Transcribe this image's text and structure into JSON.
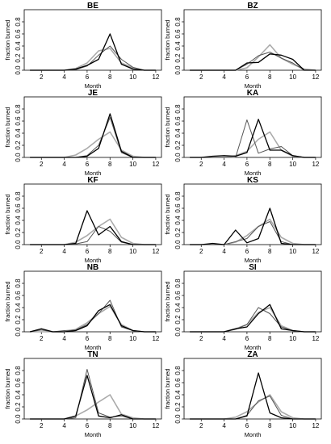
{
  "chart_data": [
    {
      "type": "line",
      "title": "BE",
      "xlabel": "Month",
      "ylabel": "fraction burned",
      "xlim": [
        0.5,
        12.5
      ],
      "ylim": [
        0,
        1
      ],
      "xticks": [
        2,
        4,
        6,
        8,
        10,
        12
      ],
      "yticks": [
        0.0,
        0.2,
        0.4,
        0.6,
        0.8
      ],
      "x": [
        1,
        2,
        3,
        4,
        5,
        6,
        7,
        8,
        9,
        10,
        11,
        12
      ],
      "series": [
        {
          "color": "#000000",
          "values": [
            0,
            0,
            0,
            0,
            0.02,
            0.08,
            0.18,
            0.6,
            0.1,
            0.02,
            0,
            0
          ]
        },
        {
          "color": "#555555",
          "values": [
            0,
            0,
            0,
            0,
            0.01,
            0.07,
            0.25,
            0.4,
            0.18,
            0.05,
            0,
            0
          ]
        },
        {
          "color": "#aaaaaa",
          "values": [
            0,
            0,
            0,
            0,
            0.03,
            0.12,
            0.32,
            0.36,
            0.12,
            0.04,
            0,
            0
          ]
        }
      ]
    },
    {
      "type": "line",
      "title": "BZ",
      "xlabel": "Month",
      "ylabel": "fraction burned",
      "xlim": [
        0.5,
        12.5
      ],
      "ylim": [
        0,
        1
      ],
      "xticks": [
        2,
        4,
        6,
        8,
        10,
        12
      ],
      "yticks": [
        0.0,
        0.2,
        0.4,
        0.6,
        0.8
      ],
      "x": [
        1,
        2,
        3,
        4,
        5,
        6,
        7,
        8,
        9,
        10,
        11,
        12
      ],
      "series": [
        {
          "color": "#000000",
          "values": [
            0,
            0,
            0,
            0,
            0,
            0.12,
            0.13,
            0.27,
            0.25,
            0.18,
            0,
            0
          ]
        },
        {
          "color": "#555555",
          "values": [
            0,
            0,
            0,
            0,
            0,
            0.1,
            0.24,
            0.3,
            0.2,
            0.12,
            0,
            0
          ]
        },
        {
          "color": "#aaaaaa",
          "values": [
            0,
            0,
            0,
            0,
            0,
            0.04,
            0.22,
            0.42,
            0.2,
            0.1,
            0.02,
            0
          ]
        }
      ]
    },
    {
      "type": "line",
      "title": "JE",
      "xlabel": "Month",
      "ylabel": "fraction burned",
      "xlim": [
        0.5,
        12.5
      ],
      "ylim": [
        0,
        1
      ],
      "xticks": [
        2,
        4,
        6,
        8,
        10,
        12
      ],
      "yticks": [
        0.0,
        0.2,
        0.4,
        0.6,
        0.8
      ],
      "x": [
        1,
        2,
        3,
        4,
        5,
        6,
        7,
        8,
        9,
        10,
        11,
        12
      ],
      "series": [
        {
          "color": "#000000",
          "values": [
            0,
            0,
            0,
            0,
            0,
            0.02,
            0.15,
            0.72,
            0.1,
            0,
            0,
            0
          ]
        },
        {
          "color": "#555555",
          "values": [
            0,
            0,
            0,
            0,
            0,
            0.03,
            0.2,
            0.66,
            0.08,
            0,
            0,
            0
          ]
        },
        {
          "color": "#aaaaaa",
          "values": [
            0,
            0,
            0,
            0,
            0.04,
            0.15,
            0.3,
            0.42,
            0.12,
            0.02,
            0,
            0
          ]
        }
      ]
    },
    {
      "type": "line",
      "title": "KA",
      "xlabel": "Month",
      "ylabel": "fraction burned",
      "xlim": [
        0.5,
        12.5
      ],
      "ylim": [
        0,
        1
      ],
      "xticks": [
        2,
        4,
        6,
        8,
        10,
        12
      ],
      "yticks": [
        0.0,
        0.2,
        0.4,
        0.6,
        0.8
      ],
      "x": [
        1,
        2,
        3,
        4,
        5,
        6,
        7,
        8,
        9,
        10,
        11,
        12
      ],
      "series": [
        {
          "color": "#000000",
          "values": [
            0,
            0,
            0.02,
            0.03,
            0.02,
            0.08,
            0.63,
            0.12,
            0.12,
            0.03,
            0,
            0
          ]
        },
        {
          "color": "#555555",
          "values": [
            0,
            0,
            0,
            0,
            0,
            0.62,
            0.07,
            0.14,
            0.18,
            0.03,
            0,
            0
          ]
        },
        {
          "color": "#aaaaaa",
          "values": [
            0,
            0,
            0,
            0,
            0.03,
            0.1,
            0.3,
            0.42,
            0.12,
            0.02,
            0,
            0
          ]
        }
      ]
    },
    {
      "type": "line",
      "title": "KF",
      "xlabel": "Month",
      "ylabel": "fraction burned",
      "xlim": [
        0.5,
        12.5
      ],
      "ylim": [
        0,
        1
      ],
      "xticks": [
        2,
        4,
        6,
        8,
        10,
        12
      ],
      "yticks": [
        0.0,
        0.2,
        0.4,
        0.6,
        0.8
      ],
      "x": [
        1,
        2,
        3,
        4,
        5,
        6,
        7,
        8,
        9,
        10,
        11,
        12
      ],
      "series": [
        {
          "color": "#000000",
          "values": [
            0,
            0,
            0,
            0,
            0.02,
            0.56,
            0.16,
            0.3,
            0.05,
            0,
            0,
            0
          ]
        },
        {
          "color": "#555555",
          "values": [
            0,
            0,
            0,
            0,
            0.01,
            0.05,
            0.3,
            0.22,
            0.04,
            0,
            0,
            0
          ]
        },
        {
          "color": "#aaaaaa",
          "values": [
            0,
            0,
            0,
            0,
            0.04,
            0.15,
            0.3,
            0.42,
            0.12,
            0.02,
            0,
            0
          ]
        }
      ]
    },
    {
      "type": "line",
      "title": "KS",
      "xlabel": "Month",
      "ylabel": "fraction burned",
      "xlim": [
        0.5,
        12.5
      ],
      "ylim": [
        0,
        1
      ],
      "xticks": [
        2,
        4,
        6,
        8,
        10,
        12
      ],
      "yticks": [
        0.0,
        0.2,
        0.4,
        0.6,
        0.8
      ],
      "x": [
        1,
        2,
        3,
        4,
        5,
        6,
        7,
        8,
        9,
        10,
        11,
        12
      ],
      "series": [
        {
          "color": "#000000",
          "values": [
            0,
            0,
            0.02,
            0,
            0.24,
            0.03,
            0.1,
            0.6,
            0.02,
            0,
            0,
            0
          ]
        },
        {
          "color": "#555555",
          "values": [
            0,
            0,
            0,
            0,
            0.05,
            0.1,
            0.3,
            0.38,
            0.05,
            0,
            0,
            0
          ]
        },
        {
          "color": "#aaaaaa",
          "values": [
            0,
            0,
            0,
            0,
            0.04,
            0.15,
            0.3,
            0.42,
            0.12,
            0.02,
            0,
            0
          ]
        }
      ]
    },
    {
      "type": "line",
      "title": "NB",
      "xlabel": "Month",
      "ylabel": "fraction burned",
      "xlim": [
        0.5,
        12.5
      ],
      "ylim": [
        0,
        1
      ],
      "xticks": [
        2,
        4,
        6,
        8,
        10,
        12
      ],
      "yticks": [
        0.0,
        0.2,
        0.4,
        0.6,
        0.8
      ],
      "x": [
        1,
        2,
        3,
        4,
        5,
        6,
        7,
        8,
        9,
        10,
        11,
        12
      ],
      "series": [
        {
          "color": "#000000",
          "values": [
            0,
            0.05,
            0,
            0,
            0.02,
            0.1,
            0.35,
            0.45,
            0.1,
            0.02,
            0,
            0
          ]
        },
        {
          "color": "#555555",
          "values": [
            0,
            0.03,
            0,
            0.02,
            0.03,
            0.12,
            0.3,
            0.52,
            0.08,
            0.02,
            0,
            0
          ]
        },
        {
          "color": "#aaaaaa",
          "values": [
            0,
            0,
            0,
            0,
            0.04,
            0.15,
            0.3,
            0.42,
            0.12,
            0.02,
            0,
            0
          ]
        }
      ]
    },
    {
      "type": "line",
      "title": "SI",
      "xlabel": "Month",
      "ylabel": "fraction burned",
      "xlim": [
        0.5,
        12.5
      ],
      "ylim": [
        0,
        1
      ],
      "xticks": [
        2,
        4,
        6,
        8,
        10,
        12
      ],
      "yticks": [
        0.0,
        0.2,
        0.4,
        0.6,
        0.8
      ],
      "x": [
        1,
        2,
        3,
        4,
        5,
        6,
        7,
        8,
        9,
        10,
        11,
        12
      ],
      "series": [
        {
          "color": "#000000",
          "values": [
            0,
            0,
            0,
            0,
            0.05,
            0.08,
            0.3,
            0.45,
            0.05,
            0.02,
            0,
            0
          ]
        },
        {
          "color": "#555555",
          "values": [
            0,
            0,
            0,
            0,
            0.04,
            0.12,
            0.4,
            0.3,
            0.08,
            0.02,
            0,
            0
          ]
        },
        {
          "color": "#aaaaaa",
          "values": [
            0,
            0,
            0,
            0,
            0.05,
            0.12,
            0.32,
            0.4,
            0.1,
            0.02,
            0,
            0
          ]
        }
      ]
    },
    {
      "type": "line",
      "title": "TN",
      "xlabel": "Month",
      "ylabel": "fraction burned",
      "xlim": [
        0.5,
        12.5
      ],
      "ylim": [
        0,
        1
      ],
      "xticks": [
        2,
        4,
        6,
        8,
        10,
        12
      ],
      "yticks": [
        0.0,
        0.2,
        0.4,
        0.6,
        0.8
      ],
      "x": [
        1,
        2,
        3,
        4,
        5,
        6,
        7,
        8,
        9,
        10,
        11,
        12
      ],
      "series": [
        {
          "color": "#000000",
          "values": [
            0,
            0,
            0,
            0,
            0.05,
            0.72,
            0.05,
            0.02,
            0.07,
            0,
            0,
            0
          ]
        },
        {
          "color": "#555555",
          "values": [
            0,
            0,
            0,
            0,
            0.02,
            0.82,
            0.1,
            0.03,
            0.05,
            0,
            0,
            0
          ]
        },
        {
          "color": "#aaaaaa",
          "values": [
            0,
            0,
            0,
            0,
            0.05,
            0.15,
            0.28,
            0.4,
            0.08,
            0.02,
            0,
            0
          ]
        }
      ]
    },
    {
      "type": "line",
      "title": "ZA",
      "xlabel": "Month",
      "ylabel": "fraction burned",
      "xlim": [
        0.5,
        12.5
      ],
      "ylim": [
        0,
        1
      ],
      "xticks": [
        2,
        4,
        6,
        8,
        10,
        12
      ],
      "yticks": [
        0.0,
        0.2,
        0.4,
        0.6,
        0.8
      ],
      "x": [
        1,
        2,
        3,
        4,
        5,
        6,
        7,
        8,
        9,
        10,
        11,
        12
      ],
      "series": [
        {
          "color": "#000000",
          "values": [
            0,
            0,
            0,
            0,
            0,
            0.05,
            0.76,
            0.1,
            0.02,
            0,
            0,
            0
          ]
        },
        {
          "color": "#555555",
          "values": [
            0,
            0,
            0,
            0,
            0,
            0.06,
            0.3,
            0.38,
            0.06,
            0,
            0,
            0
          ]
        },
        {
          "color": "#aaaaaa",
          "values": [
            0,
            0,
            0,
            0,
            0.03,
            0.12,
            0.28,
            0.4,
            0.12,
            0.02,
            0,
            0
          ]
        }
      ]
    }
  ]
}
